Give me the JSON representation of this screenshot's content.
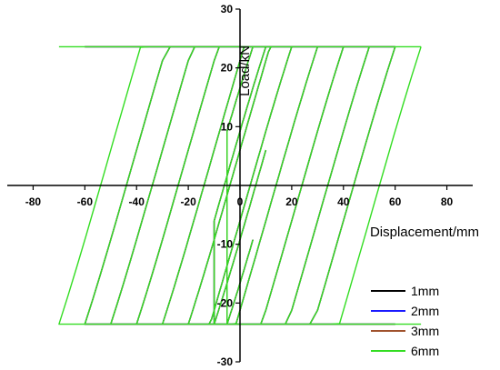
{
  "chart_data": {
    "type": "line",
    "title": "",
    "xlabel": "Displacement/mm",
    "ylabel": "Load/kN",
    "xlim": [
      -90,
      90
    ],
    "ylim": [
      -30,
      30
    ],
    "x_ticks": [
      -80,
      -60,
      -40,
      -20,
      0,
      20,
      40,
      60,
      80
    ],
    "y_ticks": [
      -30,
      -20,
      -10,
      0,
      10,
      20,
      30
    ],
    "x_tick_labels": [
      "-80",
      "-60",
      "-40",
      "-20",
      "0",
      "20",
      "40",
      "60",
      "80"
    ],
    "y_tick_labels": [
      "-30",
      "-20",
      "-10",
      "0",
      "10",
      "20",
      "30"
    ],
    "axes_style": "centered crosshair",
    "grid": false,
    "legend_position": "bottom-right",
    "amplitudes_mm": [
      5,
      10,
      20,
      30,
      40,
      50,
      60,
      70
    ],
    "yield_load_kN": 23.6,
    "initial_stiffness_kN_per_mm": 1.5,
    "series": [
      {
        "name": "1mm",
        "color": "#000000",
        "max_displacement": 60
      },
      {
        "name": "2mm",
        "color": "#1a1aff",
        "max_displacement": 60
      },
      {
        "name": "3mm",
        "color": "#a0522d",
        "max_displacement": 60
      },
      {
        "name": "6mm",
        "color": "#33dd22",
        "max_displacement": 70
      }
    ]
  }
}
